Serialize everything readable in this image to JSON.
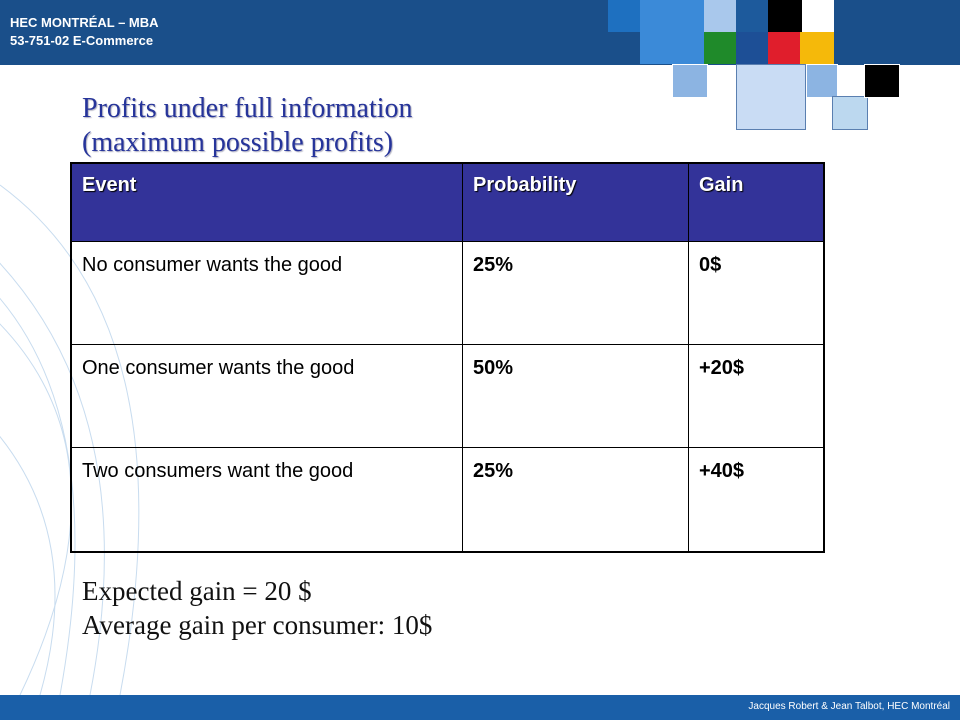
{
  "header": {
    "line1": "HEC MONTRÉAL – MBA",
    "line2": "53-751-02 E-Commerce"
  },
  "title": {
    "line1": "Profits under full information",
    "line2": "(maximum possible profits)"
  },
  "table": {
    "headers": [
      "Event",
      "Probability",
      "Gain"
    ],
    "rows": [
      [
        "No consumer wants the good",
        "25%",
        "0$"
      ],
      [
        "One consumer wants the good",
        "50%",
        "+20$"
      ],
      [
        "Two consumers want the good",
        "25%",
        "+40$"
      ]
    ]
  },
  "summary": {
    "expected_gain": "Expected gain = 20 $",
    "average_gain": "Average gain per consumer: 10$"
  },
  "footer": {
    "credit": "Jacques Robert & Jean Talbot, HEC Montréal"
  },
  "colors": {
    "header_bar": "#1a4f8a",
    "table_header": "#333399",
    "title_text": "#26349a",
    "footer_bar": "#1a5fa8"
  }
}
